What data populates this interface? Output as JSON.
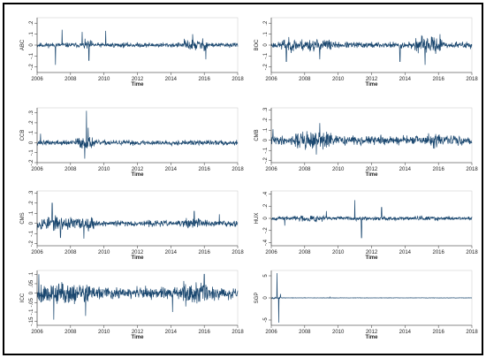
{
  "colors": {
    "series": "#1a476f",
    "axis": "#333333",
    "background": "#ffffff"
  },
  "chart_data": [
    {
      "type": "line",
      "ylabel": "ABC",
      "xlabel": "Time",
      "xlim": [
        2006,
        2018
      ],
      "ylim": [
        -0.25,
        0.25
      ],
      "xticks": [
        2006,
        2008,
        2010,
        2012,
        2014,
        2016,
        2018
      ],
      "yticks": [
        {
          "v": -0.2,
          "t": "-.2"
        },
        {
          "v": -0.1,
          "t": "-.1"
        },
        {
          "v": 0,
          "t": "0"
        },
        {
          "v": 0.1,
          "t": ".1"
        },
        {
          "v": 0.2,
          "t": ".2"
        }
      ],
      "seed": 11,
      "base_vol": 0.015,
      "bursts": [
        [
          2008.8,
          2009.3,
          2.0
        ],
        [
          2014.8,
          2016.2,
          2.5
        ]
      ],
      "spikes": [
        [
          2007.1,
          -0.18
        ],
        [
          2007.5,
          0.14
        ],
        [
          2008.7,
          0.12
        ],
        [
          2009.1,
          -0.14
        ],
        [
          2010.1,
          0.13
        ],
        [
          2016.1,
          -0.13
        ],
        [
          2015.3,
          0.1
        ]
      ]
    },
    {
      "type": "line",
      "ylabel": "BOC",
      "xlabel": "Time",
      "xlim": [
        2006,
        2018
      ],
      "ylim": [
        -0.25,
        0.25
      ],
      "xticks": [
        2006,
        2008,
        2010,
        2012,
        2014,
        2016,
        2018
      ],
      "yticks": [
        {
          "v": -0.2,
          "t": "-.2"
        },
        {
          "v": -0.1,
          "t": "-.1"
        },
        {
          "v": 0,
          "t": "0"
        },
        {
          "v": 0.1,
          "t": ".1"
        },
        {
          "v": 0.2,
          "t": ".2"
        }
      ],
      "seed": 23,
      "base_vol": 0.02,
      "bursts": [
        [
          2006.6,
          2009.6,
          2.0
        ],
        [
          2014.6,
          2016.2,
          2.5
        ]
      ],
      "spikes": [
        [
          2006.9,
          -0.15
        ],
        [
          2008.9,
          -0.13
        ],
        [
          2013.7,
          -0.15
        ],
        [
          2015.2,
          -0.18
        ],
        [
          2016.1,
          0.1
        ]
      ]
    },
    {
      "type": "line",
      "ylabel": "CCB",
      "xlabel": "Time",
      "xlim": [
        2006,
        2018
      ],
      "ylim": [
        -0.2,
        0.35
      ],
      "xticks": [
        2006,
        2008,
        2010,
        2012,
        2014,
        2016,
        2018
      ],
      "yticks": [
        {
          "v": -0.2,
          "t": "-.2"
        },
        {
          "v": -0.1,
          "t": "-.1"
        },
        {
          "v": 0,
          "t": "0"
        },
        {
          "v": 0.1,
          "t": ".1"
        },
        {
          "v": 0.2,
          "t": ".2"
        },
        {
          "v": 0.3,
          "t": ".3"
        }
      ],
      "seed": 37,
      "base_vol": 0.018,
      "bursts": [
        [
          2008.3,
          2009.4,
          2.3
        ]
      ],
      "spikes": [
        [
          2008.95,
          0.32
        ],
        [
          2008.85,
          -0.16
        ],
        [
          2009.05,
          0.15
        ],
        [
          2006.2,
          0.09
        ]
      ]
    },
    {
      "type": "line",
      "ylabel": "CMB",
      "xlabel": "Time",
      "xlim": [
        2006,
        2018
      ],
      "ylim": [
        -0.22,
        0.32
      ],
      "xticks": [
        2006,
        2008,
        2010,
        2012,
        2014,
        2016,
        2018
      ],
      "yticks": [
        {
          "v": -0.2,
          "t": "-.2"
        },
        {
          "v": -0.1,
          "t": "-.1"
        },
        {
          "v": 0,
          "t": "0"
        },
        {
          "v": 0.1,
          "t": ".1"
        },
        {
          "v": 0.2,
          "t": ".2"
        },
        {
          "v": 0.3,
          "t": ".3"
        }
      ],
      "seed": 41,
      "base_vol": 0.03,
      "bursts": [
        [
          2007.4,
          2009.6,
          2.2
        ],
        [
          2015.2,
          2016.2,
          1.5
        ]
      ],
      "spikes": [
        [
          2006.1,
          0.11
        ],
        [
          2008.9,
          0.17
        ],
        [
          2008.7,
          -0.14
        ],
        [
          2015.7,
          -0.08
        ],
        [
          2017.4,
          -0.05
        ]
      ]
    },
    {
      "type": "line",
      "ylabel": "CMS",
      "xlabel": "Time",
      "xlim": [
        2006,
        2018
      ],
      "ylim": [
        -0.22,
        0.32
      ],
      "xticks": [
        2006,
        2008,
        2010,
        2012,
        2014,
        2016,
        2018
      ],
      "yticks": [
        {
          "v": -0.2,
          "t": "-.2"
        },
        {
          "v": -0.1,
          "t": "-.1"
        },
        {
          "v": 0,
          "t": "0"
        },
        {
          "v": 0.1,
          "t": ".1"
        },
        {
          "v": 0.2,
          "t": ".2"
        },
        {
          "v": 0.3,
          "t": ".3"
        }
      ],
      "seed": 53,
      "base_vol": 0.02,
      "bursts": [
        [
          2006.0,
          2009.4,
          2.3
        ],
        [
          2014.7,
          2016.2,
          1.8
        ]
      ],
      "spikes": [
        [
          2006.9,
          0.2
        ],
        [
          2007.4,
          -0.14
        ],
        [
          2008.8,
          -0.15
        ],
        [
          2015.4,
          0.12
        ],
        [
          2016.9,
          0.09
        ]
      ]
    },
    {
      "type": "line",
      "ylabel": "HUX",
      "xlabel": "Time",
      "xlim": [
        2006,
        2018
      ],
      "ylim": [
        -0.45,
        0.45
      ],
      "xticks": [
        2006,
        2008,
        2010,
        2012,
        2014,
        2016,
        2018
      ],
      "yticks": [
        {
          "v": -0.4,
          "t": "-.4"
        },
        {
          "v": -0.2,
          "t": "-.2"
        },
        {
          "v": 0,
          "t": "0"
        },
        {
          "v": 0.2,
          "t": ".2"
        },
        {
          "v": 0.4,
          "t": ".4"
        }
      ],
      "seed": 67,
      "base_vol": 0.02,
      "bursts": [
        [
          2007.3,
          2009.3,
          2.0
        ],
        [
          2014.7,
          2016.0,
          1.6
        ]
      ],
      "spikes": [
        [
          2006.8,
          -0.12
        ],
        [
          2011.0,
          0.3
        ],
        [
          2011.4,
          -0.32
        ],
        [
          2012.6,
          0.18
        ],
        [
          2009.3,
          0.12
        ]
      ]
    },
    {
      "type": "line",
      "ylabel": "ICC",
      "xlabel": "Time",
      "xlim": [
        2006,
        2018
      ],
      "ylim": [
        -0.17,
        0.12
      ],
      "xticks": [
        2006,
        2008,
        2010,
        2012,
        2014,
        2016,
        2018
      ],
      "yticks": [
        {
          "v": -0.15,
          "t": "-.15"
        },
        {
          "v": -0.1,
          "t": "-.1"
        },
        {
          "v": -0.05,
          "t": "-.05"
        },
        {
          "v": 0,
          "t": "0"
        },
        {
          "v": 0.05,
          "t": ".05"
        },
        {
          "v": 0.1,
          "t": ".1"
        }
      ],
      "seed": 79,
      "base_vol": 0.022,
      "bursts": [
        [
          2006.0,
          2009.2,
          1.8
        ],
        [
          2014.7,
          2016.2,
          2.0
        ]
      ],
      "spikes": [
        [
          2006.1,
          0.1
        ],
        [
          2007.0,
          -0.14
        ],
        [
          2008.9,
          -0.12
        ],
        [
          2014.1,
          -0.1
        ],
        [
          2016.0,
          0.1
        ]
      ]
    },
    {
      "type": "line",
      "ylabel": "SGP",
      "xlabel": "Time",
      "xlim": [
        2006,
        2018
      ],
      "ylim": [
        -6.2,
        6.2
      ],
      "xticks": [
        2006,
        2008,
        2010,
        2012,
        2014,
        2016,
        2018
      ],
      "yticks": [
        {
          "v": -5,
          "t": "-5"
        },
        {
          "v": 0,
          "t": "0"
        },
        {
          "v": 5,
          "t": "5"
        }
      ],
      "seed": 97,
      "base_vol": 0.03,
      "bursts": [
        [
          2006.0,
          2006.6,
          4.0
        ]
      ],
      "spikes": [
        [
          2006.35,
          5.6
        ],
        [
          2006.45,
          -5.6
        ],
        [
          2006.55,
          0.9
        ],
        [
          2009.5,
          0.2
        ]
      ]
    }
  ]
}
